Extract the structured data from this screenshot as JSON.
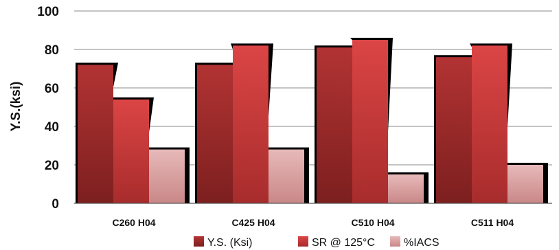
{
  "chart_data": {
    "type": "bar",
    "ylabel": "Y.S.(ksi)",
    "xlabel": "",
    "ylim": [
      0,
      100
    ],
    "yticks": [
      0,
      20,
      40,
      60,
      80,
      100
    ],
    "grid": true,
    "legend": "bottom",
    "categories": [
      "C260 H04",
      "C425 H04",
      "C510 H04",
      "C511 H04"
    ],
    "series": [
      {
        "name": "Y.S. (Ksi)",
        "color": "#9e2b2b",
        "values": [
          72,
          72,
          81,
          76
        ]
      },
      {
        "name": "SR @ 125°C",
        "color": "#cd3b3b",
        "values": [
          54,
          82,
          85,
          82
        ]
      },
      {
        "name": "%IACS",
        "color": "#d9a0a0",
        "values": [
          28,
          28,
          15,
          20
        ]
      }
    ]
  }
}
